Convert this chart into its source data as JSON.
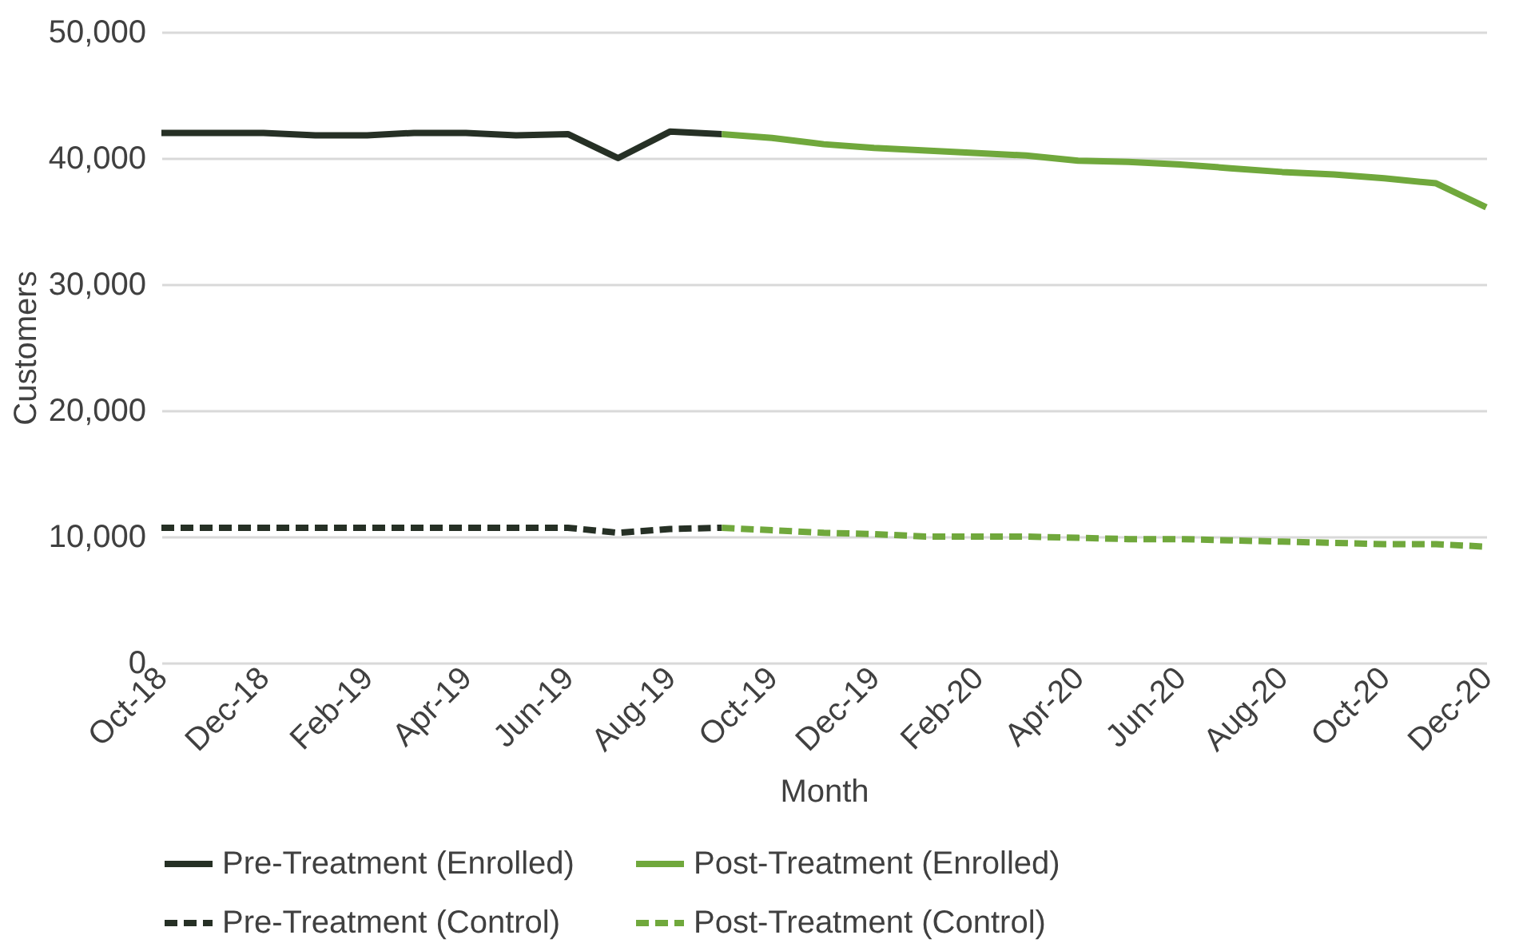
{
  "chart_data": {
    "type": "line",
    "xlabel": "Month",
    "ylabel": "Customers",
    "ylim": [
      0,
      50000
    ],
    "yticks": [
      0,
      {
        "value": 10000,
        "label": "10,000"
      },
      {
        "value": 20000,
        "label": "20,000"
      },
      {
        "value": 30000,
        "label": "30,000"
      },
      {
        "value": 40000,
        "label": "40,000"
      },
      {
        "value": 50000,
        "label": "50,000"
      }
    ],
    "xlim": [
      "2018-10",
      "2020-12"
    ],
    "xticks": [
      {
        "value": "2018-10",
        "label": "Oct-18"
      },
      {
        "value": "2018-12",
        "label": "Dec-18"
      },
      {
        "value": "2019-02",
        "label": "Feb-19"
      },
      {
        "value": "2019-04",
        "label": "Apr-19"
      },
      {
        "value": "2019-06",
        "label": "Jun-19"
      },
      {
        "value": "2019-08",
        "label": "Aug-19"
      },
      {
        "value": "2019-10",
        "label": "Oct-19"
      },
      {
        "value": "2019-12",
        "label": "Dec-19"
      },
      {
        "value": "2020-02",
        "label": "Feb-20"
      },
      {
        "value": "2020-04",
        "label": "Apr-20"
      },
      {
        "value": "2020-06",
        "label": "Jun-20"
      },
      {
        "value": "2020-08",
        "label": "Aug-20"
      },
      {
        "value": "2020-10",
        "label": "Oct-20"
      },
      {
        "value": "2020-12",
        "label": "Dec-20"
      }
    ],
    "grid": "y",
    "legend": "bottom",
    "marker": "none",
    "series": [
      {
        "name": "Pre-Treatment (Enrolled)",
        "color": "#263025",
        "line_style": "solid",
        "x": [
          "2018-10",
          "2018-11",
          "2018-12",
          "2019-01",
          "2019-02",
          "2019-03",
          "2019-04",
          "2019-05",
          "2019-06",
          "2019-07",
          "2019-08",
          "2019-09"
        ],
        "values": [
          42000,
          42000,
          42000,
          41800,
          41800,
          42000,
          42000,
          41800,
          41900,
          40000,
          42100,
          41900
        ]
      },
      {
        "name": "Post-Treatment (Enrolled)",
        "color": "#70a83c",
        "line_style": "solid",
        "x": [
          "2019-09",
          "2019-10",
          "2019-11",
          "2019-12",
          "2020-01",
          "2020-02",
          "2020-03",
          "2020-04",
          "2020-05",
          "2020-06",
          "2020-07",
          "2020-08",
          "2020-09",
          "2020-10",
          "2020-11",
          "2020-12"
        ],
        "values": [
          41900,
          41600,
          41100,
          40800,
          40600,
          40400,
          40200,
          39800,
          39700,
          39500,
          39200,
          38900,
          38700,
          38400,
          38000,
          36100
        ]
      },
      {
        "name": "Pre-Treatment (Control)",
        "color": "#263025",
        "line_style": "dashed",
        "x": [
          "2018-10",
          "2018-11",
          "2018-12",
          "2019-01",
          "2019-02",
          "2019-03",
          "2019-04",
          "2019-05",
          "2019-06",
          "2019-07",
          "2019-08",
          "2019-09"
        ],
        "values": [
          10700,
          10700,
          10700,
          10700,
          10700,
          10700,
          10700,
          10700,
          10700,
          10300,
          10600,
          10700
        ]
      },
      {
        "name": "Post-Treatment (Control)",
        "color": "#70a83c",
        "line_style": "dashed",
        "x": [
          "2019-09",
          "2019-10",
          "2019-11",
          "2019-12",
          "2020-01",
          "2020-02",
          "2020-03",
          "2020-04",
          "2020-05",
          "2020-06",
          "2020-07",
          "2020-08",
          "2020-09",
          "2020-10",
          "2020-11",
          "2020-12"
        ],
        "values": [
          10700,
          10500,
          10300,
          10200,
          10000,
          10000,
          10000,
          9900,
          9800,
          9800,
          9700,
          9600,
          9500,
          9400,
          9400,
          9200
        ]
      }
    ]
  }
}
